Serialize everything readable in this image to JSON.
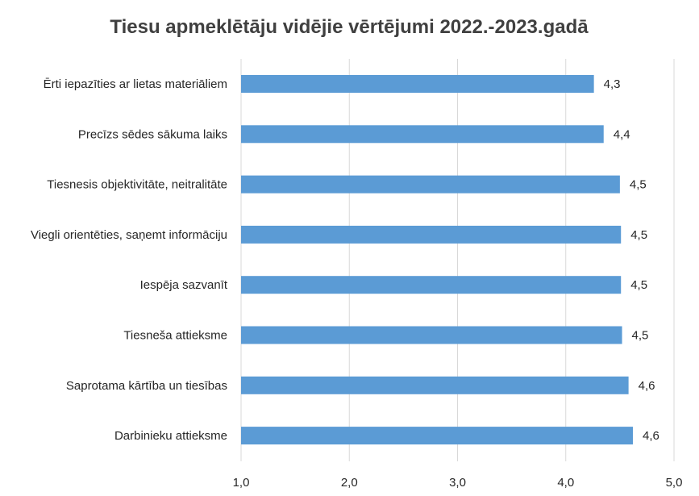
{
  "chart_data": {
    "type": "bar",
    "orientation": "horizontal",
    "title": "Tiesu apmeklētāju vidējie vērtējumi 2022.-2023.gadā",
    "xlabel": "",
    "ylabel": "",
    "xlim": [
      1.0,
      5.0
    ],
    "x_ticks": [
      1.0,
      2.0,
      3.0,
      4.0,
      5.0
    ],
    "x_tick_labels": [
      "1,0",
      "2,0",
      "3,0",
      "4,0",
      "5,0"
    ],
    "categories": [
      "Ērti iepazīties ar lietas materiāliem",
      "Precīzs sēdes sākuma laiks",
      "Tiesnesis objektivitāte, neitralitāte",
      "Viegli orientēties, saņemt informāciju",
      "Iespēja sazvanīt",
      "Tiesneša attieksme",
      "Saprotama kārtība un tiesības",
      "Darbinieku attieksme"
    ],
    "values": [
      4.26,
      4.35,
      4.5,
      4.51,
      4.51,
      4.52,
      4.58,
      4.62
    ],
    "value_labels": [
      "4,3",
      "4,4",
      "4,5",
      "4,5",
      "4,5",
      "4,5",
      "4,6",
      "4,6"
    ],
    "bar_color": "#5b9bd5",
    "grid": true,
    "legend": "none"
  }
}
